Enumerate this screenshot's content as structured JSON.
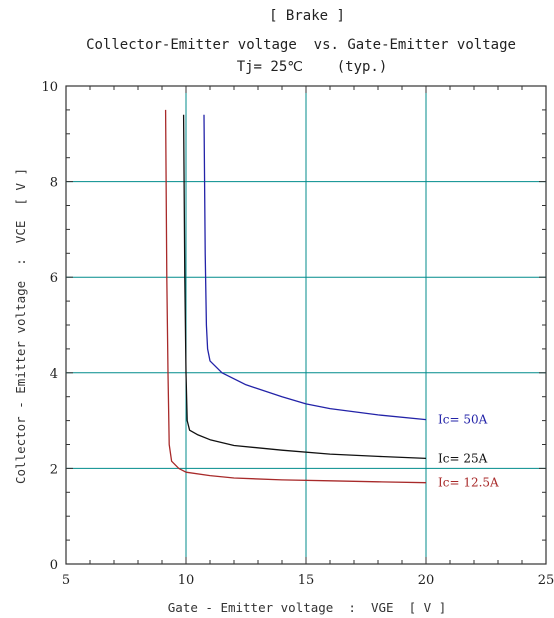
{
  "chart_data": {
    "type": "line",
    "title": "[ Brake ]",
    "subtitle": "Collector-Emitter voltage  vs. Gate-Emitter voltage",
    "condition": "Tj= 25℃    (typ.)",
    "xlabel": "Gate - Emitter voltage  :  VGE  [ V ]",
    "ylabel": "Collector - Emitter voltage  :  VCE  [ V ]",
    "xlim": [
      5,
      25
    ],
    "ylim": [
      0,
      10
    ],
    "x_ticks": [
      "5",
      "10",
      "15",
      "20",
      "25"
    ],
    "y_ticks": [
      "0",
      "2",
      "4",
      "6",
      "8",
      "10"
    ],
    "x_tick_values": [
      5,
      10,
      15,
      20,
      25
    ],
    "y_tick_values": [
      0,
      2,
      4,
      6,
      8,
      10
    ],
    "grid": true,
    "grid_color": "#008b8b",
    "series": [
      {
        "name": "Ic= 50A",
        "color": "#2323a8",
        "points": [
          [
            10.75,
            9.4
          ],
          [
            10.8,
            6.5
          ],
          [
            10.85,
            5.0
          ],
          [
            10.9,
            4.5
          ],
          [
            11.0,
            4.25
          ],
          [
            11.5,
            4.0
          ],
          [
            12.5,
            3.75
          ],
          [
            14,
            3.5
          ],
          [
            15,
            3.35
          ],
          [
            16,
            3.25
          ],
          [
            18,
            3.12
          ],
          [
            20,
            3.02
          ]
        ]
      },
      {
        "name": "Ic= 25A",
        "color": "#111111",
        "points": [
          [
            9.9,
            9.4
          ],
          [
            9.95,
            6.0
          ],
          [
            10.0,
            4.0
          ],
          [
            10.05,
            3.0
          ],
          [
            10.15,
            2.8
          ],
          [
            10.5,
            2.7
          ],
          [
            11,
            2.6
          ],
          [
            12,
            2.48
          ],
          [
            14,
            2.38
          ],
          [
            16,
            2.3
          ],
          [
            18,
            2.25
          ],
          [
            20,
            2.21
          ]
        ]
      },
      {
        "name": "Ic= 12.5A",
        "color": "#a82a2a",
        "points": [
          [
            9.15,
            9.5
          ],
          [
            9.2,
            6.0
          ],
          [
            9.25,
            4.0
          ],
          [
            9.3,
            2.5
          ],
          [
            9.4,
            2.15
          ],
          [
            9.7,
            2.0
          ],
          [
            10,
            1.92
          ],
          [
            11,
            1.85
          ],
          [
            12,
            1.8
          ],
          [
            14,
            1.76
          ],
          [
            16,
            1.74
          ],
          [
            18,
            1.72
          ],
          [
            20,
            1.7
          ]
        ]
      }
    ]
  }
}
